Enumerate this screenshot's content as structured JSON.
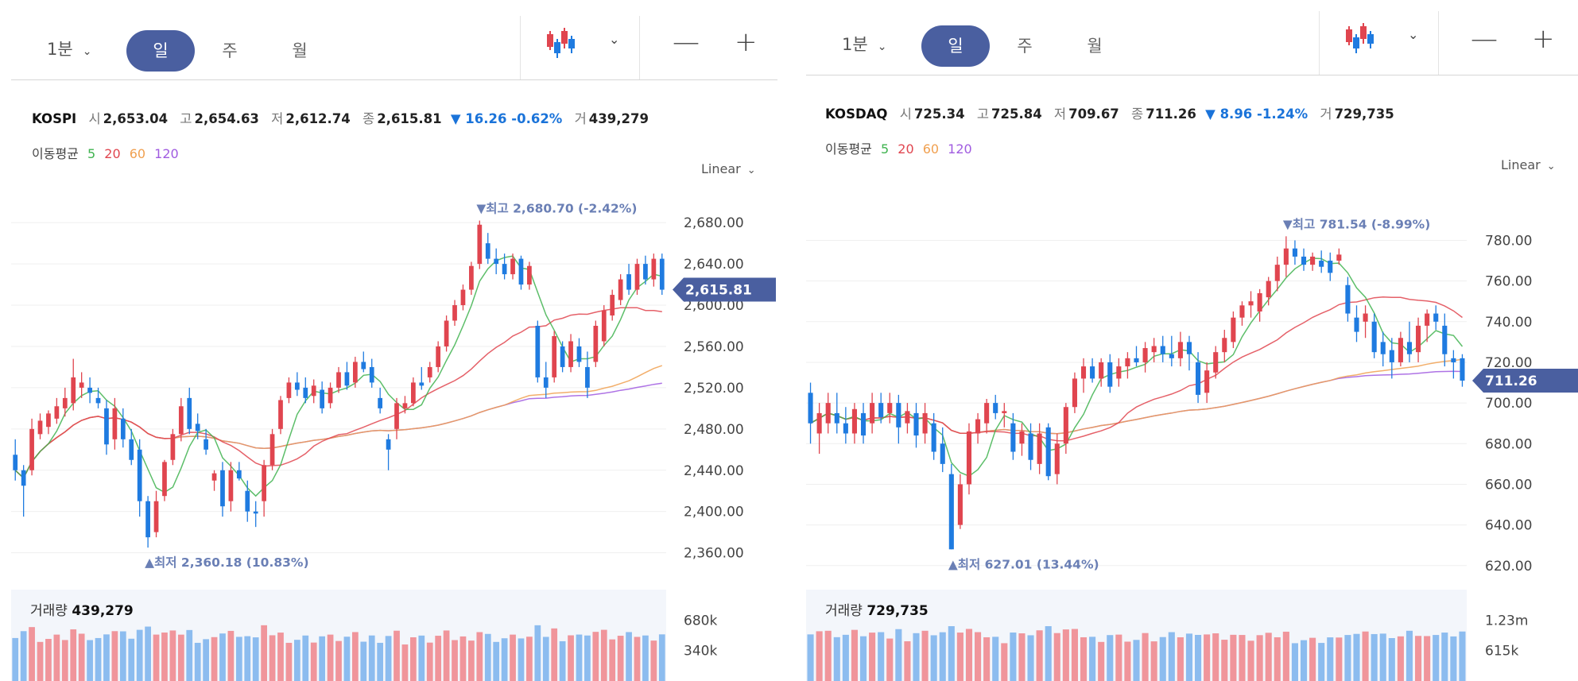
{
  "panels": [
    {
      "toolbar": {
        "interval_label": "1분",
        "periods": [
          "일",
          "주",
          "월"
        ],
        "active_period": "일",
        "zoom_out": "—",
        "zoom_in": "+"
      },
      "header": {
        "symbol": "KOSPI",
        "open_label": "시",
        "open": "2,653.04",
        "high_label": "고",
        "high": "2,654.63",
        "low_label": "저",
        "low": "2,612.74",
        "close_label": "종",
        "close": "2,615.81",
        "change": "▼ 16.26 -0.62%",
        "volume_label": "거",
        "volume": "439,279"
      },
      "ma_legend": {
        "label": "이동평균",
        "p5": "5",
        "p20": "20",
        "p60": "60",
        "p120": "120"
      },
      "scale_label": "Linear",
      "max_marker": "▼최고 2,680.70 (-2.42%)",
      "min_marker": "▲최저 2,360.18 (10.83%)",
      "price_tag": "2,615.81",
      "volume_panel": {
        "label": "거래량",
        "value": "439,279",
        "ticks": [
          "680k",
          "340k"
        ]
      }
    },
    {
      "toolbar": {
        "interval_label": "1분",
        "periods": [
          "일",
          "주",
          "월"
        ],
        "active_period": "일",
        "zoom_out": "—",
        "zoom_in": "+"
      },
      "header": {
        "symbol": "KOSDAQ",
        "open_label": "시",
        "open": "725.34",
        "high_label": "고",
        "high": "725.84",
        "low_label": "저",
        "low": "709.67",
        "close_label": "종",
        "close": "711.26",
        "change": "▼ 8.96 -1.24%",
        "volume_label": "거",
        "volume": "729,735"
      },
      "ma_legend": {
        "label": "이동평균",
        "p5": "5",
        "p20": "20",
        "p60": "60",
        "p120": "120"
      },
      "scale_label": "Linear",
      "max_marker": "▼최고 781.54 (-8.99%)",
      "min_marker": "▲최저 627.01 (13.44%)",
      "price_tag": "711.26",
      "volume_panel": {
        "label": "거래량",
        "value": "729,735",
        "ticks": [
          "1.23m",
          "615k"
        ]
      }
    }
  ],
  "colors": {
    "up": "#e0454f",
    "down": "#1f7be0",
    "ma5": "#3fb34f",
    "ma20": "#e0454f",
    "ma60": "#f0a050",
    "ma120": "#a05be0",
    "accent": "#4a5fa0",
    "vol_up": "#f0959b",
    "vol_down": "#8cbcef"
  },
  "chart_data": [
    {
      "type": "candlestick",
      "title": "KOSPI",
      "yticks": [
        2680,
        2640,
        2600,
        2560,
        2520,
        2480,
        2440,
        2400,
        2360
      ],
      "ytick_labels": [
        "2,680.00",
        "2,640.00",
        "2,600.00",
        "2,560.00",
        "2,520.00",
        "2,480.00",
        "2,440.00",
        "2,400.00",
        "2,360.00"
      ],
      "ylim": [
        2352,
        2694
      ],
      "candles": [
        [
          2455,
          2470,
          2430,
          2440
        ],
        [
          2440,
          2445,
          2395,
          2425
        ],
        [
          2440,
          2490,
          2435,
          2480
        ],
        [
          2475,
          2495,
          2470,
          2488
        ],
        [
          2482,
          2498,
          2475,
          2495
        ],
        [
          2490,
          2510,
          2485,
          2502
        ],
        [
          2500,
          2520,
          2492,
          2510
        ],
        [
          2505,
          2548,
          2498,
          2530
        ],
        [
          2520,
          2535,
          2510,
          2525
        ],
        [
          2520,
          2530,
          2505,
          2515
        ],
        [
          2510,
          2520,
          2500,
          2505
        ],
        [
          2500,
          2508,
          2455,
          2465
        ],
        [
          2470,
          2510,
          2460,
          2500
        ],
        [
          2490,
          2500,
          2462,
          2470
        ],
        [
          2470,
          2480,
          2445,
          2450
        ],
        [
          2460,
          2470,
          2395,
          2410
        ],
        [
          2410,
          2415,
          2365,
          2375
        ],
        [
          2380,
          2420,
          2375,
          2410
        ],
        [
          2415,
          2450,
          2410,
          2448
        ],
        [
          2450,
          2480,
          2445,
          2475
        ],
        [
          2475,
          2510,
          2468,
          2502
        ],
        [
          2510,
          2520,
          2475,
          2480
        ],
        [
          2485,
          2495,
          2470,
          2478
        ],
        [
          2470,
          2480,
          2455,
          2460
        ],
        [
          2430,
          2440,
          2420,
          2437
        ],
        [
          2440,
          2448,
          2395,
          2405
        ],
        [
          2410,
          2448,
          2400,
          2440
        ],
        [
          2440,
          2448,
          2430,
          2432
        ],
        [
          2420,
          2430,
          2390,
          2400
        ],
        [
          2400,
          2410,
          2385,
          2398
        ],
        [
          2410,
          2450,
          2395,
          2445
        ],
        [
          2445,
          2480,
          2440,
          2475
        ],
        [
          2480,
          2512,
          2475,
          2508
        ],
        [
          2510,
          2530,
          2505,
          2525
        ],
        [
          2525,
          2535,
          2512,
          2518
        ],
        [
          2520,
          2530,
          2505,
          2510
        ],
        [
          2512,
          2528,
          2505,
          2522
        ],
        [
          2518,
          2526,
          2495,
          2500
        ],
        [
          2505,
          2525,
          2500,
          2520
        ],
        [
          2520,
          2540,
          2515,
          2535
        ],
        [
          2535,
          2545,
          2518,
          2522
        ],
        [
          2525,
          2550,
          2520,
          2545
        ],
        [
          2545,
          2555,
          2535,
          2538
        ],
        [
          2540,
          2548,
          2520,
          2525
        ],
        [
          2510,
          2520,
          2495,
          2500
        ],
        [
          2470,
          2475,
          2440,
          2460
        ],
        [
          2480,
          2510,
          2470,
          2505
        ],
        [
          2500,
          2512,
          2495,
          2505
        ],
        [
          2505,
          2530,
          2502,
          2525
        ],
        [
          2525,
          2540,
          2518,
          2522
        ],
        [
          2530,
          2545,
          2525,
          2540
        ],
        [
          2540,
          2565,
          2535,
          2560
        ],
        [
          2560,
          2590,
          2555,
          2585
        ],
        [
          2585,
          2605,
          2580,
          2600
        ],
        [
          2600,
          2620,
          2595,
          2615
        ],
        [
          2615,
          2642,
          2610,
          2638
        ],
        [
          2640,
          2682,
          2635,
          2678
        ],
        [
          2660,
          2670,
          2640,
          2645
        ],
        [
          2645,
          2655,
          2630,
          2640
        ],
        [
          2640,
          2650,
          2625,
          2630
        ],
        [
          2630,
          2650,
          2625,
          2645
        ],
        [
          2645,
          2648,
          2615,
          2620
        ],
        [
          2620,
          2642,
          2615,
          2638
        ],
        [
          2580,
          2585,
          2525,
          2530
        ],
        [
          2530,
          2545,
          2510,
          2520
        ],
        [
          2530,
          2575,
          2525,
          2570
        ],
        [
          2560,
          2565,
          2535,
          2540
        ],
        [
          2540,
          2572,
          2535,
          2565
        ],
        [
          2560,
          2568,
          2540,
          2545
        ],
        [
          2540,
          2555,
          2510,
          2520
        ],
        [
          2545,
          2585,
          2540,
          2580
        ],
        [
          2565,
          2600,
          2560,
          2595
        ],
        [
          2590,
          2615,
          2585,
          2610
        ],
        [
          2605,
          2630,
          2600,
          2625
        ],
        [
          2630,
          2640,
          2610,
          2615
        ],
        [
          2615,
          2645,
          2610,
          2640
        ],
        [
          2640,
          2648,
          2620,
          2625
        ],
        [
          2625,
          2650,
          2618,
          2645
        ],
        [
          2645,
          2650,
          2610,
          2615
        ]
      ],
      "volume_ylim": [
        0,
        1020000
      ],
      "volume_ticks": [
        680000,
        340000
      ]
    },
    {
      "type": "candlestick",
      "title": "KOSDAQ",
      "yticks": [
        780,
        760,
        740,
        720,
        700,
        680,
        660,
        640,
        620
      ],
      "ytick_labels": [
        "780.00",
        "760.00",
        "740.00",
        "720.00",
        "700.00",
        "680.00",
        "660.00",
        "640.00",
        "620.00"
      ],
      "ylim": [
        616,
        788
      ],
      "candles": [
        [
          705,
          710,
          680,
          690
        ],
        [
          685,
          700,
          675,
          695
        ],
        [
          690,
          705,
          685,
          700
        ],
        [
          695,
          705,
          685,
          690
        ],
        [
          690,
          698,
          680,
          685
        ],
        [
          685,
          700,
          680,
          697
        ],
        [
          695,
          700,
          680,
          684
        ],
        [
          690,
          705,
          685,
          700
        ],
        [
          700,
          705,
          690,
          693
        ],
        [
          695,
          705,
          690,
          700
        ],
        [
          700,
          704,
          680,
          688
        ],
        [
          690,
          700,
          685,
          696
        ],
        [
          695,
          700,
          678,
          684
        ],
        [
          685,
          700,
          680,
          695
        ],
        [
          690,
          695,
          672,
          676
        ],
        [
          680,
          688,
          666,
          670
        ],
        [
          665,
          670,
          628,
          628
        ],
        [
          640,
          665,
          638,
          660
        ],
        [
          660,
          690,
          655,
          686
        ],
        [
          685,
          695,
          680,
          692
        ],
        [
          690,
          702,
          685,
          700
        ],
        [
          700,
          704,
          692,
          695
        ],
        [
          695,
          700,
          688,
          696
        ],
        [
          690,
          695,
          672,
          676
        ],
        [
          680,
          690,
          674,
          686
        ],
        [
          685,
          690,
          667,
          672
        ],
        [
          670,
          690,
          665,
          685
        ],
        [
          688,
          690,
          662,
          664
        ],
        [
          665,
          685,
          660,
          680
        ],
        [
          680,
          700,
          675,
          698
        ],
        [
          698,
          715,
          695,
          712
        ],
        [
          712,
          722,
          705,
          718
        ],
        [
          718,
          722,
          710,
          712
        ],
        [
          712,
          722,
          708,
          720
        ],
        [
          720,
          724,
          705,
          708
        ],
        [
          712,
          722,
          708,
          718
        ],
        [
          718,
          725,
          712,
          722
        ],
        [
          722,
          728,
          718,
          720
        ],
        [
          720,
          730,
          715,
          727
        ],
        [
          725,
          732,
          720,
          728
        ],
        [
          728,
          733,
          720,
          724
        ],
        [
          724,
          733,
          718,
          722
        ],
        [
          722,
          735,
          718,
          730
        ],
        [
          730,
          733,
          716,
          724
        ],
        [
          720,
          725,
          700,
          704
        ],
        [
          705,
          720,
          700,
          716
        ],
        [
          715,
          728,
          712,
          725
        ],
        [
          725,
          736,
          720,
          732
        ],
        [
          730,
          745,
          727,
          742
        ],
        [
          742,
          750,
          738,
          748
        ],
        [
          748,
          755,
          742,
          750
        ],
        [
          745,
          756,
          740,
          754
        ],
        [
          752,
          762,
          748,
          760
        ],
        [
          760,
          772,
          755,
          768
        ],
        [
          768,
          782,
          762,
          776
        ],
        [
          776,
          780,
          768,
          772
        ],
        [
          772,
          776,
          765,
          768
        ],
        [
          768,
          774,
          765,
          772
        ],
        [
          770,
          775,
          764,
          767
        ],
        [
          770,
          774,
          760,
          764
        ],
        [
          770,
          776,
          768,
          773
        ],
        [
          758,
          762,
          740,
          744
        ],
        [
          742,
          748,
          730,
          735
        ],
        [
          740,
          748,
          732,
          744
        ],
        [
          740,
          744,
          722,
          725
        ],
        [
          730,
          735,
          718,
          724
        ],
        [
          726,
          732,
          712,
          720
        ],
        [
          720,
          735,
          718,
          732
        ],
        [
          730,
          740,
          720,
          724
        ],
        [
          725,
          742,
          720,
          738
        ],
        [
          738,
          746,
          730,
          744
        ],
        [
          744,
          748,
          736,
          740
        ],
        [
          738,
          744,
          718,
          724
        ],
        [
          722,
          726,
          712,
          720
        ],
        [
          722,
          724,
          708,
          711
        ]
      ],
      "volume_ylim": [
        0,
        1845000
      ],
      "volume_ticks": [
        1230000,
        615000
      ]
    }
  ]
}
